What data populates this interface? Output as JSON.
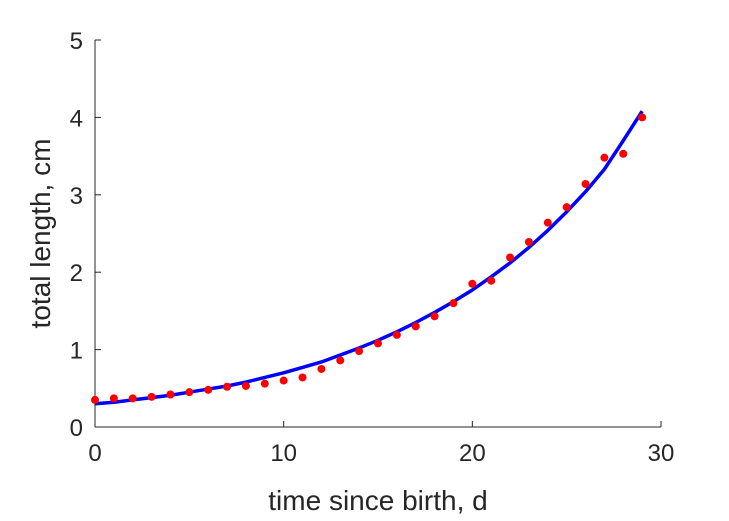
{
  "chart_data": {
    "type": "scatter",
    "title": "",
    "xlabel": "time since birth, d",
    "ylabel": "total length, cm",
    "xlim": [
      0,
      30
    ],
    "ylim": [
      0,
      5
    ],
    "xticks": [
      0,
      10,
      20,
      30
    ],
    "yticks": [
      0,
      1,
      2,
      3,
      4,
      5
    ],
    "grid": false,
    "legend": "none",
    "series": [
      {
        "type": "scatter",
        "color": "#ff0000",
        "x": [
          0,
          1,
          2,
          3,
          4,
          5,
          6,
          7,
          8,
          9,
          10,
          11,
          12,
          13,
          14,
          15,
          16,
          17,
          18,
          19,
          20,
          21,
          22,
          23,
          24,
          25,
          26,
          27,
          28,
          29
        ],
        "y": [
          0.35,
          0.37,
          0.37,
          0.39,
          0.42,
          0.45,
          0.48,
          0.52,
          0.53,
          0.56,
          0.6,
          0.64,
          0.75,
          0.86,
          0.98,
          1.08,
          1.19,
          1.3,
          1.43,
          1.6,
          1.85,
          1.89,
          2.19,
          2.39,
          2.64,
          2.84,
          3.14,
          3.48,
          3.53,
          4.0
        ]
      },
      {
        "type": "line",
        "color": "#0000ff",
        "x": [
          0,
          1,
          2,
          3,
          4,
          5,
          6,
          7,
          8,
          9,
          10,
          11,
          12,
          13,
          14,
          15,
          16,
          17,
          18,
          19,
          20,
          21,
          22,
          23,
          24,
          25,
          26,
          27,
          28,
          29
        ],
        "y": [
          0.3,
          0.32,
          0.35,
          0.38,
          0.41,
          0.45,
          0.49,
          0.53,
          0.58,
          0.64,
          0.7,
          0.77,
          0.84,
          0.93,
          1.02,
          1.12,
          1.23,
          1.35,
          1.48,
          1.62,
          1.77,
          1.94,
          2.12,
          2.32,
          2.54,
          2.78,
          3.04,
          3.33,
          3.7,
          4.08
        ]
      }
    ]
  }
}
